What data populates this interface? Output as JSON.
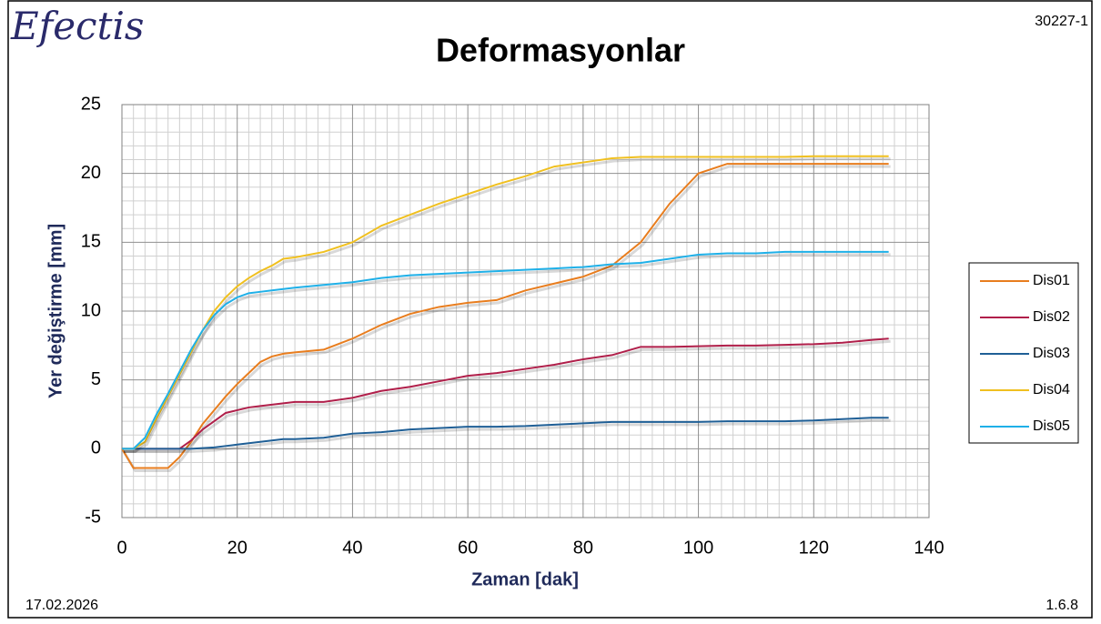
{
  "chart_data": {
    "type": "line",
    "logo": "Efectis",
    "title": "Deformasyonlar",
    "report_id": "30227-1",
    "date": "17.02.2026",
    "version": "1.6.8",
    "x_label": "Zaman [dak]",
    "y_label": "Yer değiştirme [mm]",
    "x": [
      0,
      2,
      4,
      6,
      8,
      10,
      12,
      14,
      16,
      18,
      20,
      22,
      24,
      26,
      28,
      30,
      35,
      40,
      45,
      50,
      55,
      60,
      65,
      70,
      75,
      80,
      85,
      90,
      95,
      100,
      105,
      110,
      115,
      120,
      125,
      130,
      133
    ],
    "series": [
      {
        "name": "Dis01",
        "color": "#e87d1e",
        "values": [
          0,
          -1.4,
          -1.4,
          -1.4,
          -1.4,
          -0.6,
          0.5,
          1.8,
          2.8,
          3.8,
          4.7,
          5.5,
          6.3,
          6.7,
          6.9,
          7.0,
          7.2,
          8.0,
          9.0,
          9.8,
          10.3,
          10.6,
          10.8,
          11.5,
          12.0,
          12.5,
          13.3,
          15.0,
          17.8,
          20.0,
          20.7,
          20.7,
          20.7,
          20.7,
          20.7,
          20.7,
          20.7
        ]
      },
      {
        "name": "Dis02",
        "color": "#b01f4a",
        "values": [
          0,
          0,
          0,
          0,
          0,
          0,
          0.6,
          1.4,
          2.0,
          2.6,
          2.8,
          3.0,
          3.1,
          3.2,
          3.3,
          3.4,
          3.4,
          3.7,
          4.2,
          4.5,
          4.9,
          5.3,
          5.5,
          5.8,
          6.1,
          6.5,
          6.8,
          7.4,
          7.4,
          7.45,
          7.5,
          7.5,
          7.55,
          7.6,
          7.7,
          7.9,
          8.0
        ]
      },
      {
        "name": "Dis03",
        "color": "#1f5f96",
        "values": [
          0,
          0,
          0,
          0,
          0,
          0,
          0,
          0.05,
          0.1,
          0.2,
          0.3,
          0.4,
          0.5,
          0.6,
          0.7,
          0.7,
          0.8,
          1.1,
          1.2,
          1.4,
          1.5,
          1.6,
          1.6,
          1.65,
          1.75,
          1.85,
          1.95,
          1.95,
          1.95,
          1.95,
          2.0,
          2.0,
          2.0,
          2.05,
          2.15,
          2.25,
          2.25
        ]
      },
      {
        "name": "Dis04",
        "color": "#f0c020",
        "values": [
          0,
          0,
          0.5,
          2.2,
          3.8,
          5.4,
          7.0,
          8.6,
          10.0,
          11.0,
          11.8,
          12.4,
          12.9,
          13.3,
          13.8,
          13.9,
          14.3,
          15.0,
          16.2,
          17.0,
          17.8,
          18.5,
          19.2,
          19.8,
          20.5,
          20.8,
          21.1,
          21.2,
          21.2,
          21.2,
          21.2,
          21.2,
          21.2,
          21.25,
          21.25,
          21.25,
          21.25
        ]
      },
      {
        "name": "Dis05",
        "color": "#1fb0e8",
        "values": [
          0,
          0,
          0.8,
          2.5,
          4.0,
          5.6,
          7.2,
          8.6,
          9.7,
          10.5,
          11.0,
          11.3,
          11.4,
          11.5,
          11.6,
          11.7,
          11.9,
          12.1,
          12.4,
          12.6,
          12.7,
          12.8,
          12.9,
          13.0,
          13.1,
          13.2,
          13.4,
          13.5,
          13.8,
          14.1,
          14.2,
          14.2,
          14.3,
          14.3,
          14.3,
          14.3,
          14.3
        ]
      }
    ],
    "xlim": [
      0,
      140
    ],
    "xticks": [
      0,
      20,
      40,
      60,
      80,
      100,
      120,
      140
    ],
    "ylim": [
      -5,
      25
    ],
    "yticks": [
      -5,
      0,
      5,
      10,
      15,
      20,
      25
    ],
    "grid": true,
    "legend": "right"
  }
}
